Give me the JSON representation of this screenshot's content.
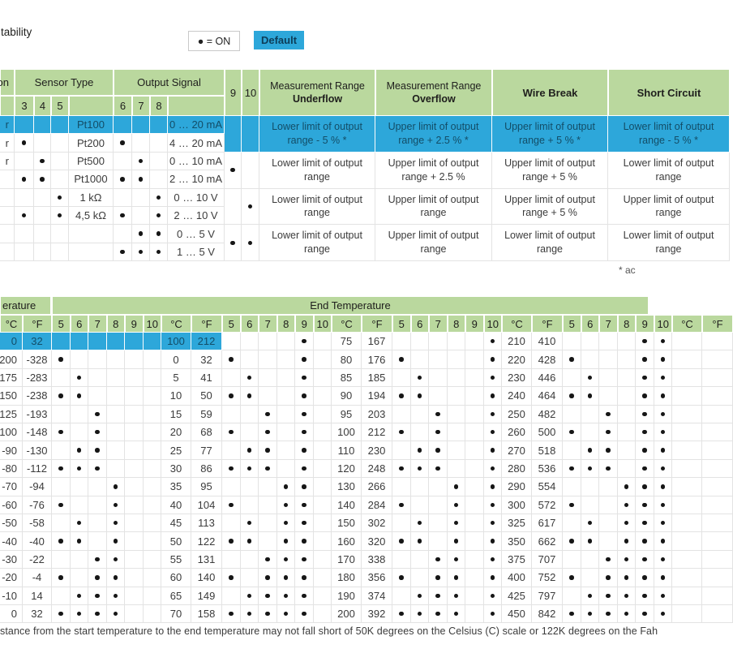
{
  "page": {
    "top_left_fragment": "tability",
    "legend_label": "● = ON",
    "default_label": "Default",
    "footnote_fragment": "* ac",
    "caption_fragment": "stance from the start temperature to the end temperature may not fall short of 50K degrees on the Celsius (C) scale or 122K degrees on the Fah"
  },
  "colors": {
    "header_green": "#bad89e",
    "highlight_blue": "#2da7da",
    "blue_text": "#134d67",
    "grid_line": "#e3e3e3",
    "body_text": "#3b3b3b"
  },
  "table1": {
    "connection_header_fragment": "on",
    "sensor_type_label": "Sensor Type",
    "output_signal_label": "Output Signal",
    "sensor_switch_labels": [
      "3",
      "4",
      "5"
    ],
    "output_switch_labels": [
      "6",
      "7",
      "8"
    ],
    "range_switch_labels": [
      "9",
      "10"
    ],
    "col_underflow_line1": "Measurement Range",
    "col_underflow_line2": "Underflow",
    "col_overflow_line1": "Measurement Range",
    "col_overflow_line2": "Overflow",
    "col_wire_break": "Wire Break",
    "col_short_circuit": "Short Circuit",
    "rows": [
      {
        "conn": "r",
        "sensor_dots": [],
        "sensor": "Pt100",
        "output_dots": [],
        "signal": "0 … 20 mA",
        "default": true
      },
      {
        "conn": "r",
        "sensor_dots": [
          "3"
        ],
        "sensor": "Pt200",
        "output_dots": [
          "6"
        ],
        "signal": "4 … 20 mA"
      },
      {
        "conn": "r",
        "sensor_dots": [
          "4"
        ],
        "sensor": "Pt500",
        "output_dots": [
          "7"
        ],
        "signal": "0 … 10 mA"
      },
      {
        "conn": "",
        "sensor_dots": [
          "3",
          "4"
        ],
        "sensor": "Pt1000",
        "output_dots": [
          "6",
          "7"
        ],
        "signal": "2 … 10 mA"
      },
      {
        "conn": "",
        "sensor_dots": [
          "5"
        ],
        "sensor": "1 kΩ",
        "output_dots": [
          "8"
        ],
        "signal": "0 … 10 V"
      },
      {
        "conn": "",
        "sensor_dots": [
          "3",
          "5"
        ],
        "sensor": "4,5 kΩ",
        "output_dots": [
          "6",
          "8"
        ],
        "signal": "2 … 10 V"
      },
      {
        "conn": "",
        "sensor_dots": [],
        "sensor": "",
        "output_dots": [
          "7",
          "8"
        ],
        "signal": "0 … 5 V"
      },
      {
        "conn": "",
        "sensor_dots": [],
        "sensor": "",
        "output_dots": [
          "6",
          "7",
          "8"
        ],
        "signal": "1 … 5 V"
      }
    ],
    "range_rows": [
      {
        "range_dots": [],
        "underflow": "Lower limit of output range - 5 % *",
        "overflow": "Upper limit of output range + 2.5 % *",
        "wire_break": "Upper limit of output range + 5 % *",
        "short_circuit": "Lower limit of output range - 5 % *",
        "default": true
      },
      {
        "range_dots": [
          "9"
        ],
        "underflow": "Lower limit of output range",
        "overflow": "Upper limit of output range + 2.5 %",
        "wire_break": "Upper limit of output range + 5 %",
        "short_circuit": "Lower limit of output range"
      },
      {
        "range_dots": [
          "10"
        ],
        "underflow": "Lower limit of output range",
        "overflow": "Upper limit of output range",
        "wire_break": "Upper limit of output range + 5 %",
        "short_circuit": "Upper limit of output range"
      },
      {
        "range_dots": [
          "9",
          "10"
        ],
        "underflow": "Lower limit of output range",
        "overflow": "Upper limit of output range",
        "wire_break": "Lower limit of output range",
        "short_circuit": "Lower limit of output range"
      }
    ]
  },
  "table2": {
    "start_header_fragment": "erature",
    "end_header": "End Temperature",
    "unit_c": "°C",
    "unit_f": "°F",
    "switch_labels": [
      "5",
      "6",
      "7",
      "8",
      "9",
      "10"
    ],
    "start_rows": [
      [
        "0",
        "32"
      ],
      [
        "-200",
        "-328"
      ],
      [
        "-175",
        "-283"
      ],
      [
        "-150",
        "-238"
      ],
      [
        "-125",
        "-193"
      ],
      [
        "-100",
        "-148"
      ],
      [
        "-90",
        "-130"
      ],
      [
        "-80",
        "-112"
      ],
      [
        "-70",
        "-94"
      ],
      [
        "-60",
        "-76"
      ],
      [
        "-50",
        "-58"
      ],
      [
        "-40",
        "-40"
      ],
      [
        "-30",
        "-22"
      ],
      [
        "-20",
        "-4"
      ],
      [
        "-10",
        "14"
      ],
      [
        "0",
        "32"
      ]
    ],
    "default_row": 0,
    "end_groups": [
      {
        "temps": [
          [
            "100",
            "212"
          ],
          [
            "0",
            "32"
          ],
          [
            "5",
            "41"
          ],
          [
            "10",
            "50"
          ],
          [
            "15",
            "59"
          ],
          [
            "20",
            "68"
          ],
          [
            "25",
            "77"
          ],
          [
            "30",
            "86"
          ],
          [
            "35",
            "95"
          ],
          [
            "40",
            "104"
          ],
          [
            "45",
            "113"
          ],
          [
            "50",
            "122"
          ],
          [
            "55",
            "131"
          ],
          [
            "60",
            "140"
          ],
          [
            "65",
            "149"
          ],
          [
            "70",
            "158"
          ]
        ],
        "dots": [
          [],
          [
            "5"
          ],
          [
            "6"
          ],
          [
            "5",
            "6"
          ],
          [
            "7"
          ],
          [
            "5",
            "7"
          ],
          [
            "6",
            "7"
          ],
          [
            "5",
            "6",
            "7"
          ],
          [
            "8"
          ],
          [
            "5",
            "8"
          ],
          [
            "6",
            "8"
          ],
          [
            "5",
            "6",
            "8"
          ],
          [
            "7",
            "8"
          ],
          [
            "5",
            "7",
            "8"
          ],
          [
            "6",
            "7",
            "8"
          ],
          [
            "5",
            "6",
            "7",
            "8"
          ]
        ]
      },
      {
        "temps": [
          [
            "75",
            "167"
          ],
          [
            "80",
            "176"
          ],
          [
            "85",
            "185"
          ],
          [
            "90",
            "194"
          ],
          [
            "95",
            "203"
          ],
          [
            "100",
            "212"
          ],
          [
            "110",
            "230"
          ],
          [
            "120",
            "248"
          ],
          [
            "130",
            "266"
          ],
          [
            "140",
            "284"
          ],
          [
            "150",
            "302"
          ],
          [
            "160",
            "320"
          ],
          [
            "170",
            "338"
          ],
          [
            "180",
            "356"
          ],
          [
            "190",
            "374"
          ],
          [
            "200",
            "392"
          ]
        ],
        "dots": [
          [
            "9"
          ],
          [
            "5",
            "9"
          ],
          [
            "6",
            "9"
          ],
          [
            "5",
            "6",
            "9"
          ],
          [
            "7",
            "9"
          ],
          [
            "5",
            "7",
            "9"
          ],
          [
            "6",
            "7",
            "9"
          ],
          [
            "5",
            "6",
            "7",
            "9"
          ],
          [
            "8",
            "9"
          ],
          [
            "5",
            "8",
            "9"
          ],
          [
            "6",
            "8",
            "9"
          ],
          [
            "5",
            "6",
            "8",
            "9"
          ],
          [
            "7",
            "8",
            "9"
          ],
          [
            "5",
            "7",
            "8",
            "9"
          ],
          [
            "6",
            "7",
            "8",
            "9"
          ],
          [
            "5",
            "6",
            "7",
            "8",
            "9"
          ]
        ]
      },
      {
        "temps": [
          [
            "210",
            "410"
          ],
          [
            "220",
            "428"
          ],
          [
            "230",
            "446"
          ],
          [
            "240",
            "464"
          ],
          [
            "250",
            "482"
          ],
          [
            "260",
            "500"
          ],
          [
            "270",
            "518"
          ],
          [
            "280",
            "536"
          ],
          [
            "290",
            "554"
          ],
          [
            "300",
            "572"
          ],
          [
            "325",
            "617"
          ],
          [
            "350",
            "662"
          ],
          [
            "375",
            "707"
          ],
          [
            "400",
            "752"
          ],
          [
            "425",
            "797"
          ],
          [
            "450",
            "842"
          ]
        ],
        "dots": [
          [
            "10"
          ],
          [
            "5",
            "10"
          ],
          [
            "6",
            "10"
          ],
          [
            "5",
            "6",
            "10"
          ],
          [
            "7",
            "10"
          ],
          [
            "5",
            "7",
            "10"
          ],
          [
            "6",
            "7",
            "10"
          ],
          [
            "5",
            "6",
            "7",
            "10"
          ],
          [
            "8",
            "10"
          ],
          [
            "5",
            "8",
            "10"
          ],
          [
            "6",
            "8",
            "10"
          ],
          [
            "5",
            "6",
            "8",
            "10"
          ],
          [
            "7",
            "8",
            "10"
          ],
          [
            "5",
            "7",
            "8",
            "10"
          ],
          [
            "6",
            "7",
            "8",
            "10"
          ],
          [
            "5",
            "6",
            "7",
            "8",
            "10"
          ]
        ]
      },
      {
        "temps": [
          [
            "",
            ""
          ],
          [
            "",
            ""
          ],
          [
            "",
            ""
          ],
          [
            "",
            ""
          ],
          [
            "",
            ""
          ],
          [
            "",
            ""
          ],
          [
            "",
            ""
          ],
          [
            "",
            ""
          ],
          [
            "",
            ""
          ],
          [
            "",
            ""
          ],
          [
            "",
            ""
          ],
          [
            "",
            ""
          ],
          [
            "",
            ""
          ],
          [
            "",
            ""
          ],
          [
            "",
            ""
          ],
          [
            "",
            ""
          ]
        ],
        "dots": [
          [
            "9",
            "10"
          ],
          [
            "5",
            "9",
            "10"
          ],
          [
            "6",
            "9",
            "10"
          ],
          [
            "5",
            "6",
            "9",
            "10"
          ],
          [
            "7",
            "9",
            "10"
          ],
          [
            "5",
            "7",
            "9",
            "10"
          ],
          [
            "6",
            "7",
            "9",
            "10"
          ],
          [
            "5",
            "6",
            "7",
            "9",
            "10"
          ],
          [
            "8",
            "9",
            "10"
          ],
          [
            "5",
            "8",
            "9",
            "10"
          ],
          [
            "6",
            "8",
            "9",
            "10"
          ],
          [
            "5",
            "6",
            "8",
            "9",
            "10"
          ],
          [
            "7",
            "8",
            "9",
            "10"
          ],
          [
            "5",
            "7",
            "8",
            "9",
            "10"
          ],
          [
            "6",
            "7",
            "8",
            "9",
            "10"
          ],
          [
            "5",
            "6",
            "7",
            "8",
            "9",
            "10"
          ]
        ]
      }
    ]
  }
}
